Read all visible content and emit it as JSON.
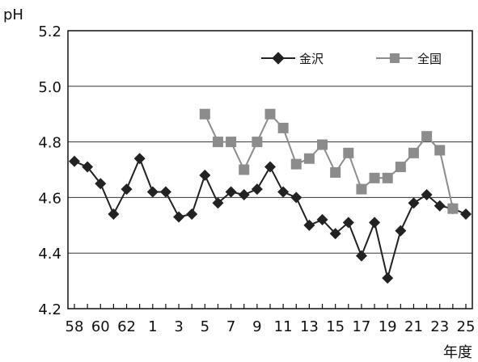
{
  "chart_data": {
    "type": "line",
    "ylabel": "pH",
    "xlabel": "年度",
    "ylim": [
      4.2,
      5.2
    ],
    "yticks": [
      "4.2",
      "4.4",
      "4.6",
      "4.8",
      "5.0",
      "5.2"
    ],
    "grid": true,
    "legend_position": "top-right",
    "x": [
      58,
      59,
      60,
      61,
      62,
      63,
      1,
      2,
      3,
      4,
      5,
      6,
      7,
      8,
      9,
      10,
      11,
      12,
      13,
      14,
      15,
      16,
      17,
      18,
      19,
      20,
      21,
      22,
      23,
      24,
      25
    ],
    "x_tick_labels": [
      "58",
      "",
      "60",
      "",
      "62",
      "",
      "1",
      "",
      "3",
      "",
      "5",
      "",
      "7",
      "",
      "9",
      "",
      "11",
      "",
      "13",
      "",
      "15",
      "",
      "17",
      "",
      "19",
      "",
      "21",
      "",
      "23",
      "",
      "25"
    ],
    "series": [
      {
        "name": "金沢",
        "color": "#222222",
        "marker": "diamond",
        "values": [
          4.73,
          4.71,
          4.65,
          4.54,
          4.63,
          4.74,
          4.62,
          4.62,
          4.53,
          4.54,
          4.68,
          4.58,
          4.62,
          4.61,
          4.63,
          4.71,
          4.62,
          4.6,
          4.5,
          4.52,
          4.47,
          4.51,
          4.39,
          4.51,
          4.31,
          4.48,
          4.58,
          4.61,
          4.57,
          4.56,
          4.54
        ]
      },
      {
        "name": "全国",
        "color": "#8c8c8c",
        "marker": "square",
        "values": [
          null,
          null,
          null,
          null,
          null,
          null,
          null,
          null,
          null,
          null,
          4.9,
          4.8,
          4.8,
          4.7,
          4.8,
          4.9,
          4.85,
          4.72,
          4.74,
          4.79,
          4.69,
          4.76,
          4.63,
          4.67,
          4.67,
          4.71,
          4.76,
          4.82,
          4.77,
          4.56,
          null
        ]
      }
    ]
  }
}
